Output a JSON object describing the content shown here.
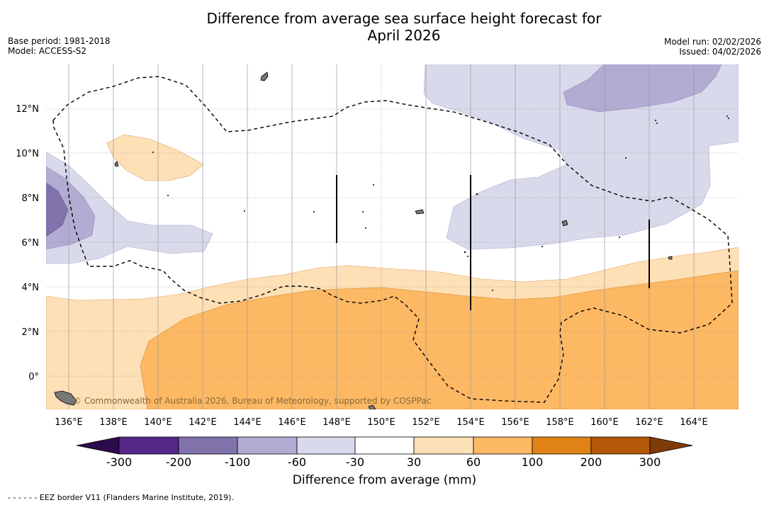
{
  "title_line1": "Difference from average sea surface height forecast for",
  "title_line2": "April 2026",
  "base_period": "Base period: 1981-2018",
  "model": "Model: ACCESS-S2",
  "model_run": "Model run: 02/02/2026",
  "issued": "Issued: 04/02/2026",
  "map": {
    "longitude_labels": [
      "136°E",
      "138°E",
      "140°E",
      "142°E",
      "144°E",
      "146°E",
      "148°E",
      "150°E",
      "152°E",
      "154°E",
      "156°E",
      "158°E",
      "160°E",
      "162°E",
      "164°E"
    ],
    "latitude_labels": [
      "12°N",
      "10°N",
      "8°N",
      "6°N",
      "4°N",
      "2°N",
      "0°"
    ],
    "credit": "© Commonwealth of Australia 2026, Bureau of Meteorology, supported by COSPPac"
  },
  "colorbar": {
    "ticks": [
      "-300",
      "-200",
      "-100",
      "-60",
      "-30",
      "30",
      "60",
      "100",
      "200",
      "300"
    ],
    "colors": [
      "#2d0a4b",
      "#542788",
      "#8073ac",
      "#b2abd2",
      "#d8daeb",
      "#ffffff",
      "#fee0b6",
      "#fdb863",
      "#e08214",
      "#b35806",
      "#7f3b08"
    ],
    "title": "Difference from average (mm)"
  },
  "colors": {
    "dark_purple": "#8073ac",
    "mid_purple": "#b2abd2",
    "light_purple": "#d8daeb",
    "light_orange": "#fee0b6",
    "orange": "#fdb863"
  },
  "footnote": "- -  - -  - - EEZ border V11 (Flanders Marine Institute, 2019)."
}
